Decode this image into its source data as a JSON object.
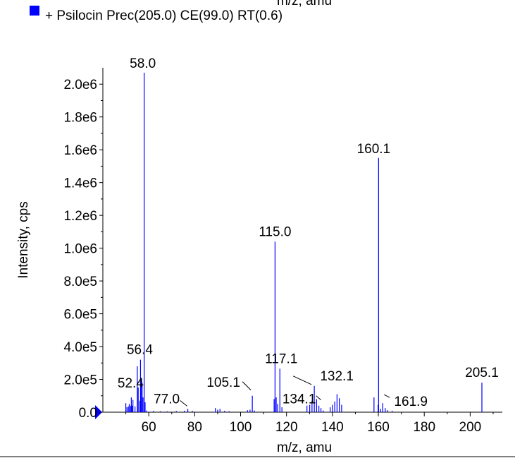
{
  "header": {
    "cut_text": "m/z, amu",
    "legend_label": "+ Psilocin Prec(205.0) CE(99.0) RT(0.6)"
  },
  "colors": {
    "series": "#0000ff",
    "axis": "#000000",
    "background": "#ffffff"
  },
  "chart_data": {
    "type": "bar",
    "xlabel": "m/z, amu",
    "ylabel": "Intensity, cps",
    "xlim": [
      40,
      214
    ],
    "ylim": [
      0,
      2100000.0
    ],
    "grid": false,
    "legend_position": "top-left",
    "x_ticks": [
      {
        "value": 60,
        "label": "60"
      },
      {
        "value": 80,
        "label": "80"
      },
      {
        "value": 100,
        "label": "100"
      },
      {
        "value": 120,
        "label": "120"
      },
      {
        "value": 140,
        "label": "140"
      },
      {
        "value": 160,
        "label": "160"
      },
      {
        "value": 180,
        "label": "180"
      },
      {
        "value": 200,
        "label": "200"
      }
    ],
    "y_ticks": [
      {
        "value": 0,
        "label": "0.0"
      },
      {
        "value": 200000,
        "label": "2.0e5"
      },
      {
        "value": 400000,
        "label": "4.0e5"
      },
      {
        "value": 600000,
        "label": "6.0e5"
      },
      {
        "value": 800000,
        "label": "8.0e5"
      },
      {
        "value": 1000000,
        "label": "1.0e6"
      },
      {
        "value": 1200000,
        "label": "1.2e6"
      },
      {
        "value": 1400000,
        "label": "1.4e6"
      },
      {
        "value": 1600000,
        "label": "1.6e6"
      },
      {
        "value": 1800000,
        "label": "1.8e6"
      },
      {
        "value": 2000000,
        "label": "2.0e6"
      }
    ],
    "series": [
      {
        "x": [
          50.0,
          50.5,
          51.1,
          51.5,
          52.1,
          52.4,
          52.8,
          53.1,
          54.0,
          55.0,
          55.4,
          56.1,
          56.4,
          56.8,
          57.1,
          57.5,
          58.0,
          58.4,
          59.0,
          62.0,
          65.0,
          68.0,
          72.0,
          75.5,
          77.0,
          79.0,
          89.0,
          90.0,
          91.0,
          93.0,
          95.0,
          103.0,
          104.1,
          105.1,
          106.0,
          114.6,
          115.0,
          115.5,
          116.1,
          117.1,
          118.0,
          128.9,
          130.1,
          131.1,
          132.1,
          133.1,
          134.1,
          135.0,
          136.0,
          139.0,
          140.0,
          141.0,
          142.0,
          143.0,
          144.0,
          158.1,
          159.9,
          160.1,
          161.0,
          161.9,
          163.0,
          164.0,
          166.0,
          205.1
        ],
        "y": [
          55000,
          30000,
          35000,
          50000,
          38000,
          90000,
          40000,
          75000,
          35000,
          280000,
          150000,
          70000,
          320000,
          150000,
          180000,
          90000,
          2070000,
          60000,
          10000,
          8000,
          6000,
          5000,
          7000,
          9000,
          20000,
          8000,
          25000,
          15000,
          20000,
          8000,
          6000,
          12000,
          15000,
          100000,
          10000,
          80000,
          1040000,
          90000,
          50000,
          265000,
          30000,
          40000,
          45000,
          70000,
          160000,
          80000,
          40000,
          25000,
          10000,
          30000,
          45000,
          65000,
          110000,
          85000,
          45000,
          90000,
          45000,
          1550000,
          20000,
          55000,
          25000,
          12000,
          8000,
          180000
        ]
      }
    ],
    "peak_labels": [
      {
        "x": 58.0,
        "y": 2070000,
        "text": "58.0"
      },
      {
        "x": 160.1,
        "y": 1550000,
        "text": "160.1"
      },
      {
        "x": 115.0,
        "y": 1040000,
        "text": "115.0"
      },
      {
        "x": 56.4,
        "y": 320000,
        "text": "56.4"
      },
      {
        "x": 117.1,
        "y": 265000,
        "text": "117.1"
      },
      {
        "x": 132.1,
        "y": 160000,
        "text": "132.1"
      },
      {
        "x": 205.1,
        "y": 180000,
        "text": "205.1"
      },
      {
        "x": 105.1,
        "y": 100000,
        "text": "105.1"
      },
      {
        "x": 52.4,
        "y": 90000,
        "text": "52.4"
      },
      {
        "x": 134.1,
        "y": 40000,
        "text": "134.1"
      },
      {
        "x": 77.0,
        "y": 20000,
        "text": "77.0"
      },
      {
        "x": 161.9,
        "y": 55000,
        "text": "161.9"
      }
    ]
  }
}
